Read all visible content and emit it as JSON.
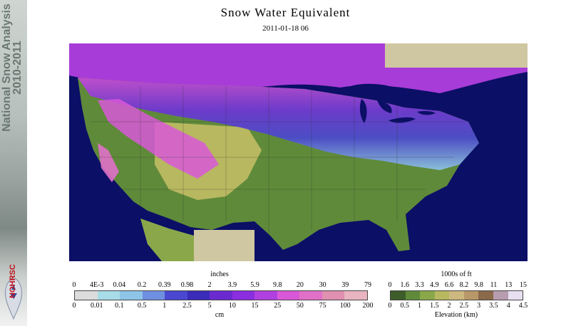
{
  "sidebar": {
    "title": "National Snow Analysis",
    "title_years": "2010-2011",
    "logo_text": "NOHRSC"
  },
  "header": {
    "title": "Snow Water Equivalent",
    "timestamp": "2011-01-18 06"
  },
  "map": {
    "ocean_color": "#0b0f66",
    "lake_color": "#0b0f66",
    "nodata_color": "#cfc7a1"
  },
  "swe_legend": {
    "top_unit": "inches",
    "bottom_unit": "cm",
    "inches_ticks": [
      "0",
      "4E-3",
      "0.04",
      "0.2",
      "0.39",
      "0.98",
      "2",
      "3.9",
      "5.9",
      "9.8",
      "20",
      "30",
      "39",
      "79"
    ],
    "cm_ticks": [
      "0",
      "0.01",
      "0.1",
      "0.5",
      "1",
      "2.5",
      "5",
      "10",
      "15",
      "25",
      "50",
      "75",
      "100",
      "200"
    ],
    "colors": [
      "#dcdcdc",
      "#a8dce8",
      "#8ec4e6",
      "#6f8fe0",
      "#4a48d0",
      "#3a2bb8",
      "#6a2ad0",
      "#8a2ee0",
      "#b040e0",
      "#d858d8",
      "#e070c8",
      "#e090b0",
      "#e8b4c0"
    ]
  },
  "elev_legend": {
    "top_unit": "1000s of ft",
    "bottom_unit": "Elevation (km)",
    "ft_ticks": [
      "0",
      "1.6",
      "3.3",
      "4.9",
      "6.6",
      "8.2",
      "9.8",
      "11",
      "13",
      "15"
    ],
    "km_ticks": [
      "0",
      "0.5",
      "1",
      "1.5",
      "2",
      "2.5",
      "3",
      "3.5",
      "4",
      "4.5"
    ],
    "colors": [
      "#3d5e2a",
      "#5f8a3a",
      "#8aa84a",
      "#b8b860",
      "#cdb880",
      "#b89868",
      "#8a6a4a",
      "#b89cb0",
      "#e8e0f0"
    ]
  }
}
